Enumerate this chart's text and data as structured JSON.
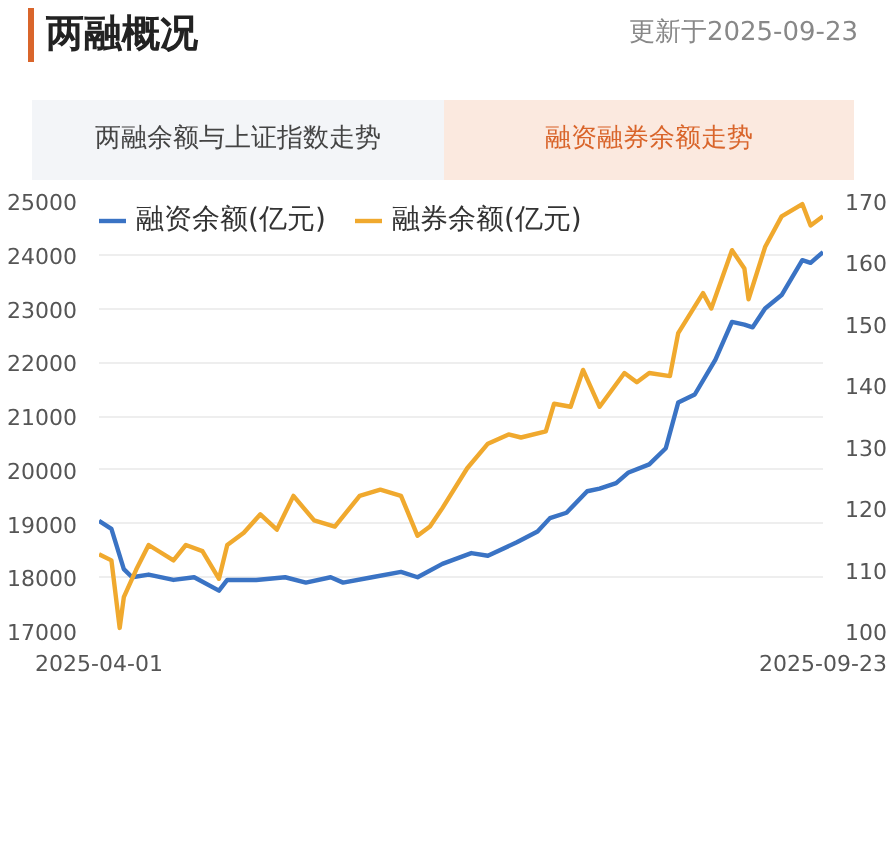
{
  "chart_data": {
    "type": "line",
    "title": "两融概况",
    "subtitle": "更新于2025-09-23",
    "annotations": [
      "两融余额与上证指数走势",
      "融资融券余额走势"
    ],
    "xlim": [
      "2025-04-01",
      "2025-09-23"
    ],
    "xticks": [
      {
        "value": "2025-04-01",
        "label": "2025-04-01"
      },
      {
        "value": "2025-09-23",
        "label": "2025-09-23"
      }
    ],
    "ylim": [
      17000,
      25000
    ],
    "yticks": [
      17000,
      18000,
      19000,
      20000,
      21000,
      22000,
      23000,
      24000,
      25000
    ],
    "y2lim": [
      100,
      170
    ],
    "y2ticks": [
      100,
      110,
      120,
      130,
      140,
      150,
      160,
      170
    ],
    "grid": "y",
    "legend": "top left",
    "marker": "none",
    "line_style": "solid",
    "series": [
      {
        "name": "融资余额(亿元)",
        "color": "#3a73c4",
        "x": [
          "2025-04-01",
          "2025-04-04",
          "2025-04-07",
          "2025-04-09",
          "2025-04-13",
          "2025-04-19",
          "2025-04-24",
          "2025-04-30",
          "2025-05-02",
          "2025-05-09",
          "2025-05-16",
          "2025-05-21",
          "2025-05-27",
          "2025-05-30",
          "2025-06-06",
          "2025-06-13",
          "2025-06-17",
          "2025-06-23",
          "2025-06-30",
          "2025-07-04",
          "2025-07-11",
          "2025-07-16",
          "2025-07-19",
          "2025-07-23",
          "2025-07-28",
          "2025-07-31",
          "2025-08-04",
          "2025-08-07",
          "2025-08-12",
          "2025-08-16",
          "2025-08-19",
          "2025-08-23",
          "2025-08-28",
          "2025-09-01",
          "2025-09-04",
          "2025-09-06",
          "2025-09-09",
          "2025-09-13",
          "2025-09-18",
          "2025-09-20",
          "2025-09-23"
        ],
        "values": [
          19050,
          18900,
          18150,
          18000,
          18050,
          17950,
          18000,
          17750,
          17950,
          17950,
          18000,
          17900,
          18000,
          17900,
          18000,
          18100,
          18000,
          18250,
          18450,
          18400,
          18650,
          18850,
          19100,
          19200,
          19600,
          19650,
          19750,
          19950,
          20100,
          20400,
          21250,
          21400,
          22050,
          22750,
          22700,
          22650,
          23000,
          23250,
          23900,
          23850,
          24050
        ]
      },
      {
        "name": "融券余额(亿元)",
        "color": "#f0a92e",
        "axis": "y2",
        "x": [
          "2025-04-01",
          "2025-04-04",
          "2025-04-06",
          "2025-04-07",
          "2025-04-10",
          "2025-04-13",
          "2025-04-19",
          "2025-04-22",
          "2025-04-26",
          "2025-04-30",
          "2025-05-02",
          "2025-05-06",
          "2025-05-10",
          "2025-05-14",
          "2025-05-18",
          "2025-05-23",
          "2025-05-28",
          "2025-06-03",
          "2025-06-08",
          "2025-06-13",
          "2025-06-17",
          "2025-06-20",
          "2025-06-23",
          "2025-06-29",
          "2025-07-04",
          "2025-07-09",
          "2025-07-12",
          "2025-07-18",
          "2025-07-20",
          "2025-07-24",
          "2025-07-27",
          "2025-07-31",
          "2025-08-06",
          "2025-08-09",
          "2025-08-12",
          "2025-08-17",
          "2025-08-19",
          "2025-08-25",
          "2025-08-27",
          "2025-09-01",
          "2025-09-04",
          "2025-09-05",
          "2025-09-09",
          "2025-09-13",
          "2025-09-18",
          "2025-09-20",
          "2025-09-23"
        ],
        "values": [
          112.5,
          111.5,
          100.5,
          105.5,
          110,
          114,
          111.5,
          114,
          113,
          108.5,
          114,
          116,
          119,
          116.5,
          122,
          118,
          117,
          122,
          123,
          122,
          115.5,
          117,
          120,
          126.5,
          130.5,
          132,
          131.5,
          132.5,
          137,
          136.5,
          142.5,
          136.5,
          142,
          140.5,
          142,
          141.5,
          148.5,
          155,
          152.5,
          162,
          159,
          154,
          162.5,
          167.5,
          169.5,
          166,
          167.5
        ]
      }
    ]
  }
}
